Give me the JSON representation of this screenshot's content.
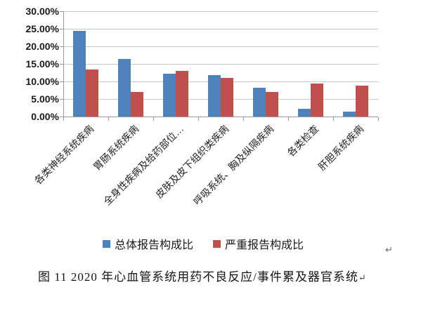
{
  "chart_data": {
    "type": "bar",
    "title": "",
    "categories": [
      "各类神经系统疾病",
      "胃肠系统疾病",
      "全身性疾病及给药部位…",
      "皮肤及皮下组织类疾病",
      "呼吸系统、胸及纵隔疾病",
      "各类检查",
      "肝胆系统疾病"
    ],
    "series": [
      {
        "key": "overall-report",
        "name": "总体报告构成比",
        "color": "#4F81BD",
        "values": [
          24.5,
          16.5,
          12.2,
          11.9,
          8.2,
          2.3,
          1.5
        ]
      },
      {
        "key": "serious-report",
        "name": "严重报告构成比",
        "color": "#C0504D",
        "values": [
          13.5,
          7.1,
          13.1,
          11.1,
          7.0,
          9.4,
          8.9
        ]
      }
    ],
    "xlabel": "",
    "ylabel": "",
    "ylim": [
      0,
      30
    ],
    "y_tick_step": 5,
    "y_tick_labels": [
      "0.00%",
      "5.00%",
      "10.00%",
      "15.00%",
      "20.00%",
      "25.00%",
      "30.00%"
    ],
    "grid": true,
    "legend_position": "bottom"
  },
  "colors": {
    "grid": "#c9c9c9",
    "axis": "#9a9a9a"
  },
  "stray_paragraph_mark": "↵",
  "caption": {
    "text": "图 11  2020 年心血管系统用药不良反应/事件累及器官系统",
    "paragraph_mark": "↵"
  }
}
